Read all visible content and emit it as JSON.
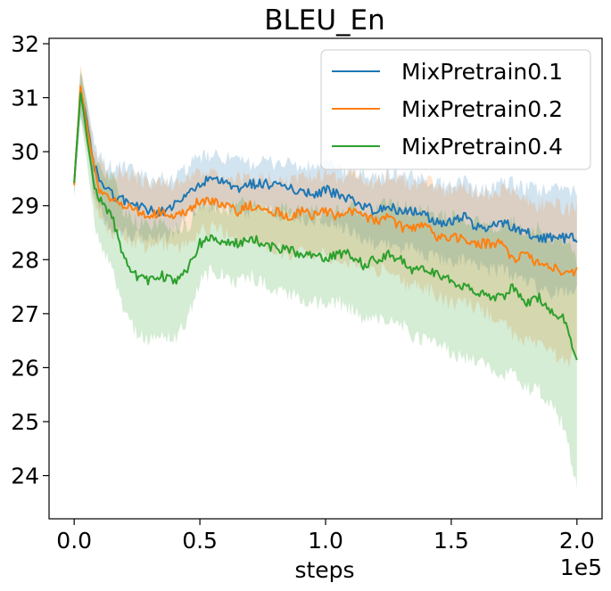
{
  "chart_data": {
    "type": "line",
    "title": "BLEU_En",
    "xlabel": "steps",
    "ylabel": "",
    "x_offset_text": "1e5",
    "xlim": [
      -0.1,
      2.1
    ],
    "ylim": [
      23.2,
      32.1
    ],
    "x_ticks": [
      0.0,
      0.5,
      1.0,
      1.5,
      2.0
    ],
    "x_tick_labels": [
      "0.0",
      "0.5",
      "1.0",
      "1.5",
      "2.0"
    ],
    "y_ticks": [
      24,
      25,
      26,
      27,
      28,
      29,
      30,
      31,
      32
    ],
    "y_tick_labels": [
      "24",
      "25",
      "26",
      "27",
      "28",
      "29",
      "30",
      "31",
      "32"
    ],
    "grid": false,
    "legend_position": "top-right",
    "shaded_band": "min-max across runs",
    "x": [
      0.0,
      0.025,
      0.05,
      0.075,
      0.1,
      0.15,
      0.2,
      0.25,
      0.3,
      0.35,
      0.4,
      0.45,
      0.5,
      0.55,
      0.6,
      0.65,
      0.7,
      0.75,
      0.8,
      0.85,
      0.9,
      0.95,
      1.0,
      1.05,
      1.1,
      1.15,
      1.2,
      1.25,
      1.3,
      1.35,
      1.4,
      1.45,
      1.5,
      1.55,
      1.6,
      1.65,
      1.7,
      1.75,
      1.8,
      1.85,
      1.9,
      1.95,
      2.0
    ],
    "series": [
      {
        "name": "MixPretrain0.1",
        "color": "#1f77b4",
        "values": [
          29.4,
          31.1,
          30.6,
          29.8,
          29.5,
          29.2,
          29.1,
          29.0,
          28.9,
          28.9,
          29.0,
          29.2,
          29.4,
          29.5,
          29.4,
          29.3,
          29.4,
          29.4,
          29.4,
          29.3,
          29.3,
          29.2,
          29.3,
          29.2,
          29.1,
          29.0,
          28.9,
          29.0,
          28.9,
          28.9,
          28.8,
          28.7,
          28.7,
          28.8,
          28.6,
          28.6,
          28.7,
          28.6,
          28.5,
          28.4,
          28.4,
          28.4,
          28.4
        ],
        "band_low": [
          29.2,
          30.7,
          30.2,
          29.3,
          28.9,
          28.6,
          28.5,
          28.4,
          28.4,
          28.4,
          28.5,
          28.8,
          29.0,
          29.0,
          29.0,
          28.9,
          28.9,
          29.0,
          28.9,
          28.8,
          28.8,
          28.7,
          28.7,
          28.6,
          28.5,
          28.4,
          28.3,
          28.3,
          28.2,
          28.2,
          28.1,
          28.0,
          28.0,
          28.0,
          27.9,
          27.8,
          27.8,
          27.7,
          27.6,
          27.5,
          27.4,
          27.4,
          27.5
        ],
        "band_high": [
          29.6,
          31.5,
          31.0,
          30.2,
          29.9,
          29.7,
          29.7,
          29.6,
          29.5,
          29.5,
          29.5,
          29.7,
          29.9,
          29.9,
          29.9,
          29.8,
          29.8,
          29.8,
          29.8,
          29.8,
          29.7,
          29.7,
          29.8,
          29.7,
          29.6,
          29.6,
          29.5,
          29.6,
          29.6,
          29.5,
          29.5,
          29.4,
          29.4,
          29.5,
          29.3,
          29.3,
          29.4,
          29.4,
          29.3,
          29.3,
          29.3,
          29.3,
          29.3
        ]
      },
      {
        "name": "MixPretrain0.2",
        "color": "#ff7f0e",
        "values": [
          29.4,
          31.2,
          30.5,
          29.8,
          29.3,
          29.1,
          29.0,
          28.9,
          28.8,
          28.9,
          28.8,
          28.9,
          29.1,
          29.1,
          29.0,
          28.9,
          29.0,
          28.9,
          28.9,
          28.8,
          28.9,
          28.8,
          28.9,
          28.8,
          28.9,
          28.8,
          28.7,
          28.8,
          28.6,
          28.6,
          28.6,
          28.4,
          28.4,
          28.4,
          28.3,
          28.3,
          28.3,
          28.0,
          28.1,
          27.9,
          27.9,
          27.7,
          27.8
        ],
        "band_low": [
          29.2,
          30.8,
          30.1,
          29.3,
          28.8,
          28.5,
          28.4,
          28.3,
          28.2,
          28.3,
          28.2,
          28.3,
          28.5,
          28.6,
          28.5,
          28.3,
          28.4,
          28.3,
          28.2,
          28.1,
          28.2,
          28.1,
          28.1,
          28.0,
          28.0,
          27.9,
          27.8,
          27.8,
          27.6,
          27.5,
          27.5,
          27.3,
          27.2,
          27.2,
          27.1,
          27.0,
          26.9,
          26.6,
          26.5,
          26.4,
          26.3,
          26.1,
          26.2
        ],
        "band_high": [
          29.6,
          31.6,
          30.9,
          30.2,
          29.8,
          29.6,
          29.6,
          29.5,
          29.4,
          29.4,
          29.4,
          29.5,
          29.6,
          29.6,
          29.5,
          29.5,
          29.5,
          29.5,
          29.5,
          29.4,
          29.5,
          29.5,
          29.6,
          29.5,
          29.6,
          29.5,
          29.4,
          29.6,
          29.5,
          29.4,
          29.5,
          29.3,
          29.3,
          29.4,
          29.2,
          29.2,
          29.3,
          29.2,
          29.1,
          29.0,
          29.1,
          28.9,
          29.0
        ]
      },
      {
        "name": "MixPretrain0.4",
        "color": "#2ca02c",
        "values": [
          29.4,
          31.1,
          30.3,
          29.5,
          29.1,
          28.8,
          28.0,
          27.7,
          27.6,
          27.7,
          27.6,
          27.8,
          28.3,
          28.4,
          28.3,
          28.3,
          28.4,
          28.3,
          28.2,
          28.2,
          28.1,
          28.1,
          28.0,
          28.1,
          28.1,
          27.9,
          28.0,
          28.1,
          28.0,
          27.8,
          27.8,
          27.7,
          27.6,
          27.5,
          27.4,
          27.3,
          27.3,
          27.5,
          27.2,
          27.3,
          27.0,
          26.9,
          26.1
        ],
        "band_low": [
          29.2,
          30.6,
          29.8,
          28.9,
          28.3,
          27.9,
          27.0,
          26.6,
          26.5,
          26.6,
          26.5,
          26.9,
          27.6,
          27.8,
          27.7,
          27.6,
          27.7,
          27.6,
          27.4,
          27.4,
          27.3,
          27.2,
          27.2,
          27.2,
          27.1,
          26.9,
          26.9,
          26.9,
          26.8,
          26.6,
          26.5,
          26.4,
          26.3,
          26.2,
          26.1,
          26.0,
          25.9,
          25.9,
          25.6,
          25.6,
          25.3,
          24.9,
          23.8
        ],
        "band_high": [
          29.6,
          31.5,
          30.8,
          30.0,
          29.7,
          29.5,
          28.9,
          28.7,
          28.6,
          28.7,
          28.6,
          28.6,
          29.0,
          29.0,
          28.9,
          29.0,
          29.1,
          29.0,
          28.9,
          29.0,
          28.9,
          28.9,
          28.9,
          28.9,
          29.0,
          28.8,
          28.9,
          29.1,
          29.0,
          28.9,
          28.9,
          28.8,
          28.8,
          28.7,
          28.7,
          28.6,
          28.6,
          28.7,
          28.5,
          28.6,
          28.4,
          28.4,
          28.0
        ]
      }
    ]
  }
}
